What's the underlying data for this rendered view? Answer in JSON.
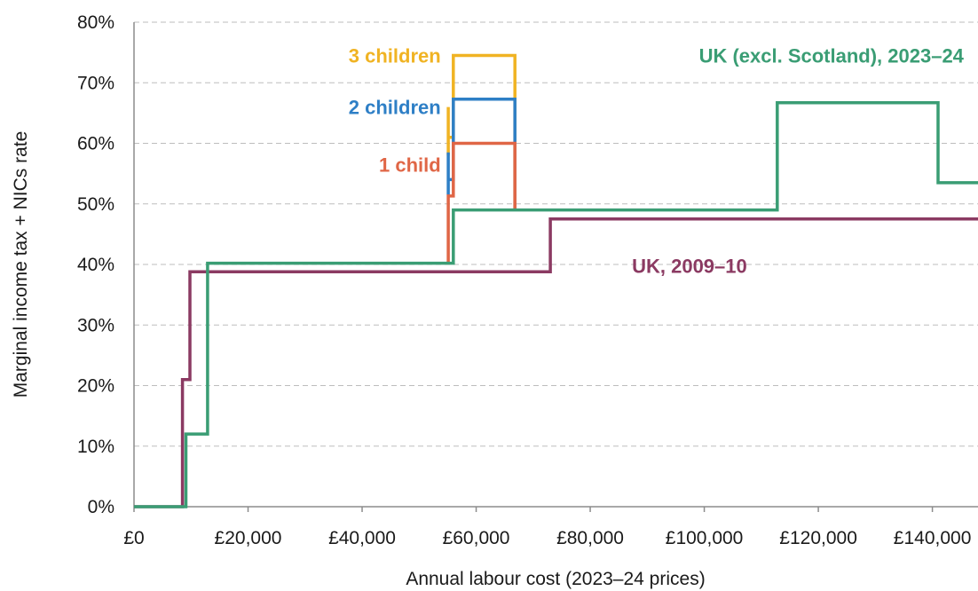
{
  "chart_data": {
    "type": "line",
    "step": true,
    "xlabel": "Annual labour cost (2023–24 prices)",
    "ylabel": "Marginal income tax + NICs rate",
    "xlim": [
      0,
      148000
    ],
    "ylim": [
      0,
      80
    ],
    "x_ticks": [
      0,
      20000,
      40000,
      60000,
      80000,
      100000,
      120000,
      140000
    ],
    "x_tick_labels": [
      "£0",
      "£20,000",
      "£40,000",
      "£60,000",
      "£80,000",
      "£100,000",
      "£120,000",
      "£140,000"
    ],
    "y_ticks": [
      0,
      10,
      20,
      30,
      40,
      50,
      60,
      70,
      80
    ],
    "y_tick_labels": [
      "0%",
      "10%",
      "20%",
      "30%",
      "40%",
      "50%",
      "60%",
      "70%",
      "80%"
    ],
    "grid": true,
    "series": [
      {
        "name": "UK, 2009–10",
        "color": "#8B3A62",
        "points": [
          [
            0,
            0
          ],
          [
            8500,
            0
          ],
          [
            8500,
            21
          ],
          [
            9800,
            21
          ],
          [
            9800,
            38.8
          ],
          [
            73000,
            38.8
          ],
          [
            73000,
            47.5
          ],
          [
            148000,
            47.5
          ]
        ]
      },
      {
        "name": "3 children",
        "color": "#F0B323",
        "points": [
          [
            55100,
            58
          ],
          [
            55100,
            66
          ],
          [
            55100,
            61
          ],
          [
            56000,
            61
          ],
          [
            56000,
            74.5
          ],
          [
            66800,
            74.5
          ],
          [
            66800,
            49
          ]
        ]
      },
      {
        "name": "2 children",
        "color": "#2E7FC6",
        "points": [
          [
            55100,
            51.5
          ],
          [
            55100,
            58.5
          ],
          [
            55100,
            54
          ],
          [
            56000,
            54
          ],
          [
            56000,
            67.3
          ],
          [
            66800,
            67.3
          ],
          [
            66800,
            49
          ]
        ]
      },
      {
        "name": "1 child",
        "color": "#E06646",
        "points": [
          [
            55100,
            40.2
          ],
          [
            55100,
            51.3
          ],
          [
            56000,
            51.3
          ],
          [
            56000,
            60
          ],
          [
            66800,
            60
          ],
          [
            66800,
            49
          ]
        ]
      },
      {
        "name": "UK (excl. Scotland), 2023–24",
        "color": "#3A9D74",
        "points": [
          [
            0,
            0
          ],
          [
            9100,
            0
          ],
          [
            9100,
            12
          ],
          [
            12900,
            12
          ],
          [
            12900,
            40.2
          ],
          [
            56000,
            40.2
          ],
          [
            56000,
            49
          ],
          [
            112800,
            49
          ],
          [
            112800,
            66.7
          ],
          [
            141000,
            66.7
          ],
          [
            141000,
            53.5
          ],
          [
            148000,
            53.5
          ]
        ]
      }
    ],
    "annotations": [
      {
        "text": "3 children",
        "series": "3 children",
        "x": 53800,
        "y": 74.5,
        "anchor": "end",
        "color": "#F0B323"
      },
      {
        "text": "2 children",
        "series": "2 children",
        "x": 53800,
        "y": 66,
        "anchor": "end",
        "color": "#2E7FC6"
      },
      {
        "text": "1 child",
        "series": "1 child",
        "x": 53800,
        "y": 56.5,
        "anchor": "end",
        "color": "#E06646"
      },
      {
        "text": "UK (excl. Scotland), 2023–24",
        "series": "UK (excl. Scotland), 2023–24",
        "x": 145500,
        "y": 74.5,
        "anchor": "end",
        "color": "#3A9D74"
      },
      {
        "text": "UK, 2009–10",
        "series": "UK, 2009–10",
        "x": 107500,
        "y": 39.8,
        "anchor": "end",
        "color": "#8B3A62"
      }
    ]
  }
}
